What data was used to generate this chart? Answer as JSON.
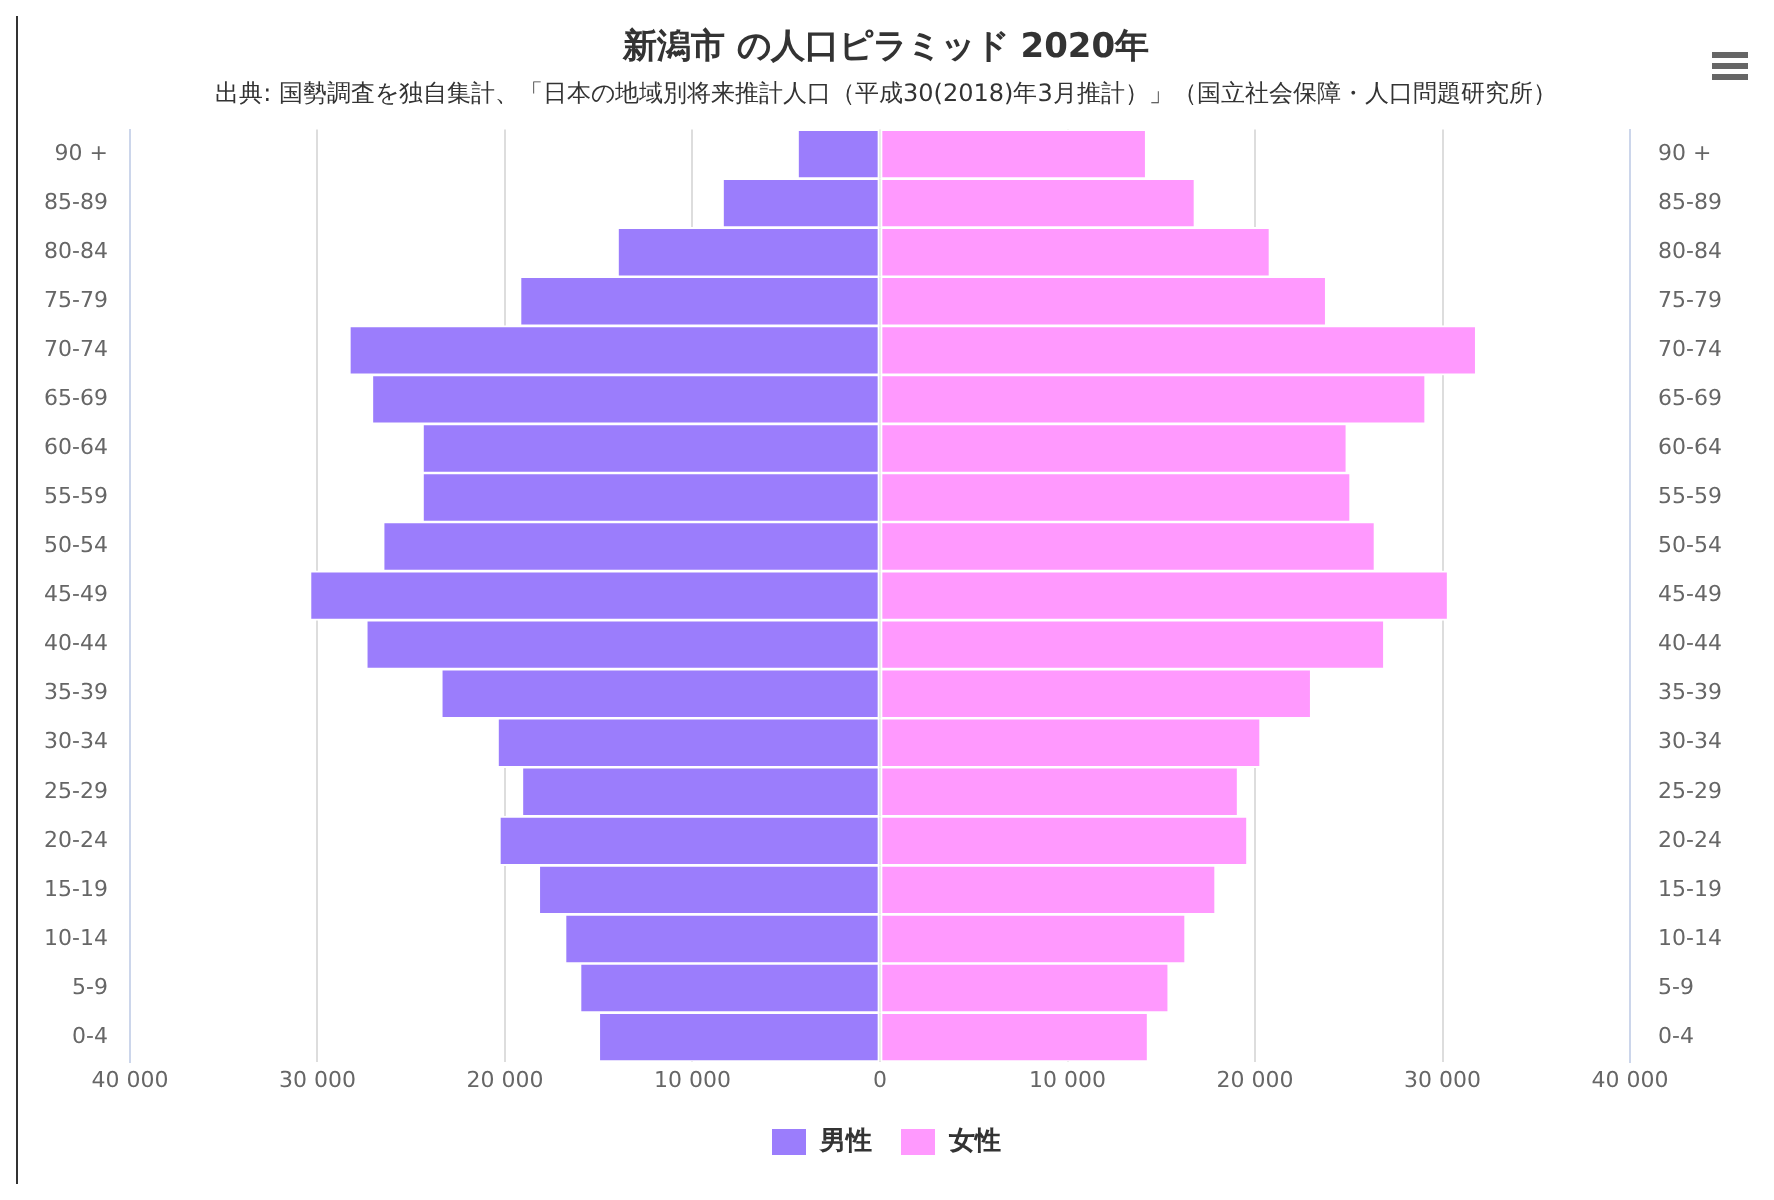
{
  "chart_data": {
    "type": "bar",
    "orientation": "horizontal",
    "stacked": true,
    "title": "新潟市 の人口ピラミッド 2020年",
    "subtitle": "出典: 国勢調査を独自集計、「日本の地域別将来推計人口（平成30(2018)年3月推計）」（国立社会保障・人口問題研究所）",
    "categories": [
      "90 +",
      "85-89",
      "80-84",
      "75-79",
      "70-74",
      "65-69",
      "60-64",
      "55-59",
      "50-54",
      "45-49",
      "40-44",
      "35-39",
      "30-34",
      "25-29",
      "20-24",
      "15-19",
      "10-14",
      "5-9",
      "0-4"
    ],
    "series": [
      {
        "name": "男性",
        "color": "#9b7dfc",
        "values": [
          -4400,
          -8400,
          -14000,
          -19200,
          -28300,
          -27100,
          -24400,
          -24400,
          -26500,
          -30400,
          -27400,
          -23400,
          -20400,
          -19100,
          -20300,
          -18200,
          -16800,
          -16000,
          -15000
        ]
      },
      {
        "name": "女性",
        "color": "#ff99fe",
        "values": [
          14200,
          16800,
          20800,
          23800,
          31800,
          29100,
          24900,
          25100,
          26400,
          30300,
          26900,
          23000,
          20300,
          19100,
          19600,
          17900,
          16300,
          15400,
          14300
        ]
      }
    ],
    "xlim": [
      -40000,
      40000
    ],
    "xticks": [
      {
        "value": -40000,
        "label": "40 000"
      },
      {
        "value": -30000,
        "label": "30 000"
      },
      {
        "value": -20000,
        "label": "20 000"
      },
      {
        "value": -10000,
        "label": "10 000"
      },
      0,
      {
        "value": 10000,
        "label": "10 000"
      },
      {
        "value": 20000,
        "label": "20 000"
      },
      {
        "value": 30000,
        "label": "30 000"
      },
      {
        "value": 40000,
        "label": "40 000"
      }
    ],
    "grid": "x",
    "legend": "bottom"
  }
}
